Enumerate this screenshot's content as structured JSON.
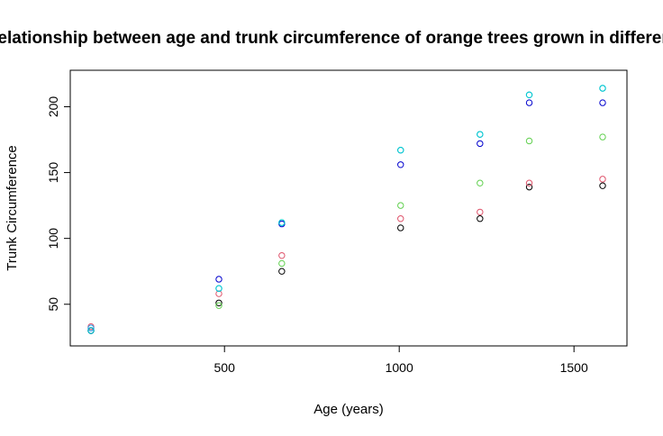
{
  "chart_data": {
    "type": "scatter",
    "title": "Relationship between age and trunk circumference of orange trees grown in different",
    "xlabel": "Age (years)",
    "ylabel": "Trunk Circumference",
    "xlim": [
      118,
      1582
    ],
    "ylim": [
      30,
      214
    ],
    "x_ticks": [
      500,
      1000,
      1500
    ],
    "y_ticks": [
      50,
      100,
      150,
      200
    ],
    "grid": false,
    "legend": "none",
    "x": [
      118,
      484,
      664,
      1004,
      1231,
      1372,
      1582
    ],
    "series": [
      {
        "color": "#000000",
        "values": [
          30,
          51,
          75,
          108,
          115,
          139,
          140
        ]
      },
      {
        "color": "#DF536B",
        "values": [
          33,
          58,
          87,
          115,
          120,
          142,
          145
        ]
      },
      {
        "color": "#61D04F",
        "values": [
          30,
          49,
          81,
          125,
          142,
          174,
          177
        ]
      },
      {
        "color": "#2297E6",
        "values": [
          32,
          62,
          112,
          167,
          179,
          209,
          214
        ]
      },
      {
        "color": "#0000CD",
        "values": [
          30,
          69,
          111,
          156,
          172,
          203,
          203
        ]
      },
      {
        "color": "#00CDCD",
        "values": [
          30,
          62,
          112,
          167,
          179,
          209,
          214
        ]
      }
    ]
  }
}
